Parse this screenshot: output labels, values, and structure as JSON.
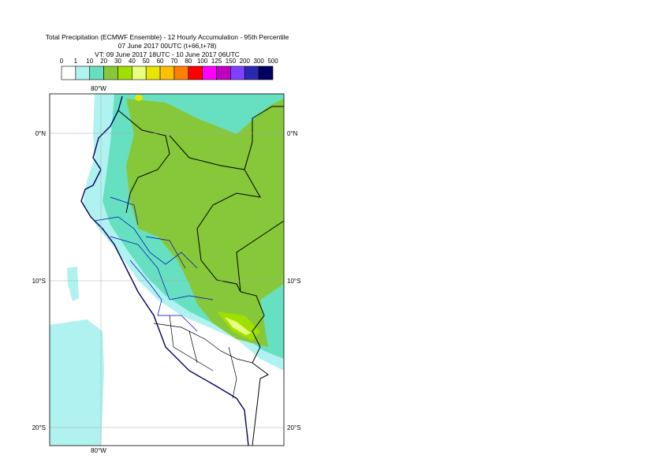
{
  "header": {
    "title_lines": [
      "Total Precipitation (ECMWF Ensemble) - 12 Hourly Accumulation - 95th Percentile",
      "07 June 2017 00UTC (t+66,t+78)",
      "VT: 09 June 2017 18UTC - 10 June 2017 06UTC"
    ]
  },
  "legend": {
    "labels": [
      "0",
      "1",
      "10",
      "20",
      "30",
      "40",
      "50",
      "60",
      "70",
      "80",
      "100",
      "125",
      "150",
      "200",
      "300",
      "500"
    ],
    "colors": [
      "#ffffff",
      "#b0f2f0",
      "#66e0c0",
      "#86c83a",
      "#a0e000",
      "#e8ff80",
      "#e6e600",
      "#ffc000",
      "#ff8000",
      "#ff0000",
      "#ff00ff",
      "#c000c0",
      "#8040ff",
      "#2828b0",
      "#000060"
    ]
  },
  "map": {
    "lon_labels": [
      "80°W",
      "80°W"
    ],
    "lat_labels_left": [
      "0°N",
      "10°S",
      "20°S"
    ],
    "lat_labels_right": [
      "0°N",
      "10°S",
      "20°S"
    ]
  }
}
